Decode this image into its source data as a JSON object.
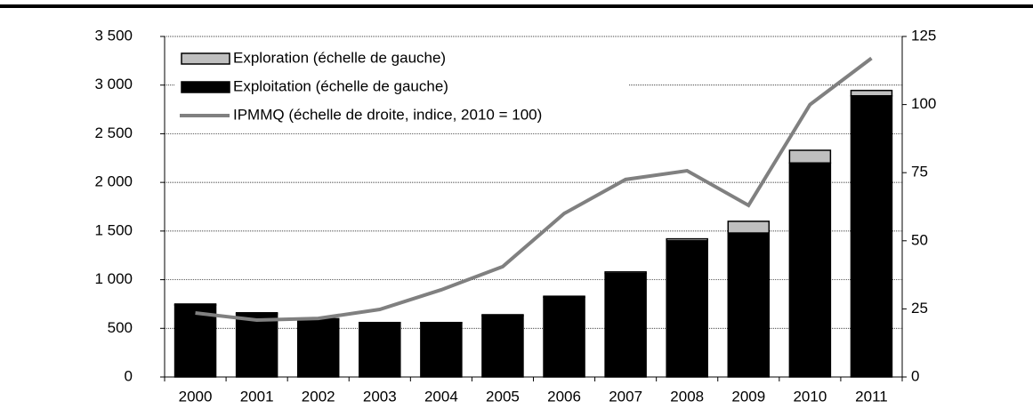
{
  "chart_data": {
    "type": "bar-line",
    "categories": [
      "2000",
      "2001",
      "2002",
      "2003",
      "2004",
      "2005",
      "2006",
      "2007",
      "2008",
      "2009",
      "2010",
      "2011"
    ],
    "series": [
      {
        "name": "Exploitation (échelle de gauche)",
        "color": "#000000",
        "values": [
          740,
          650,
          590,
          555,
          555,
          630,
          820,
          1065,
          1400,
          1480,
          2200,
          2890
        ]
      },
      {
        "name": "Exploration (échelle de gauche)",
        "color": "#bfbfbf",
        "values": [
          10,
          10,
          10,
          5,
          5,
          10,
          10,
          15,
          20,
          120,
          130,
          55
        ]
      },
      {
        "name": "IPMMQ (échelle de droite, indice, 2010 = 100)",
        "color": "#808080",
        "axis": "y2",
        "values": [
          23.5,
          20.9,
          21.5,
          24.8,
          32,
          40.5,
          60,
          72.5,
          75.7,
          63,
          100,
          117
        ]
      }
    ],
    "ylim": [
      0,
      3500
    ],
    "yticks": [
      0,
      500,
      {
        "value": 1000,
        "label": "1 000"
      },
      {
        "value": 1500,
        "label": "1 500"
      },
      {
        "value": 2000,
        "label": "2 000"
      },
      {
        "value": 2500,
        "label": "2 500"
      },
      {
        "value": 3000,
        "label": "3 000"
      },
      {
        "value": 3500,
        "label": "3 500"
      }
    ],
    "y2lim": [
      0,
      125
    ],
    "y2ticks": [
      0,
      25,
      50,
      75,
      100,
      125
    ],
    "grid": true
  }
}
